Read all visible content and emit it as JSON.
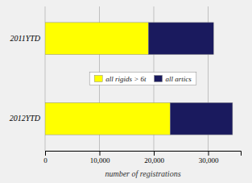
{
  "chart_data": {
    "type": "bar",
    "orientation": "horizontal",
    "stacked": true,
    "categories": [
      "2012YTD",
      "2011YTD"
    ],
    "series": [
      {
        "name": "all rigids > 6t",
        "color": "#FFFF00",
        "values": [
          23000,
          19000
        ]
      },
      {
        "name": "all artics",
        "color": "#1a1a5e",
        "values": [
          11500,
          12000
        ]
      }
    ],
    "xlabel": "number of registrations",
    "xlim": [
      0,
      36000
    ],
    "xticks": [
      0,
      {
        "value": 10000,
        "label": "10,000"
      },
      {
        "value": 20000,
        "label": "20,000"
      },
      {
        "value": 30000,
        "label": "30,000"
      }
    ],
    "grid": true,
    "legend": "center"
  }
}
